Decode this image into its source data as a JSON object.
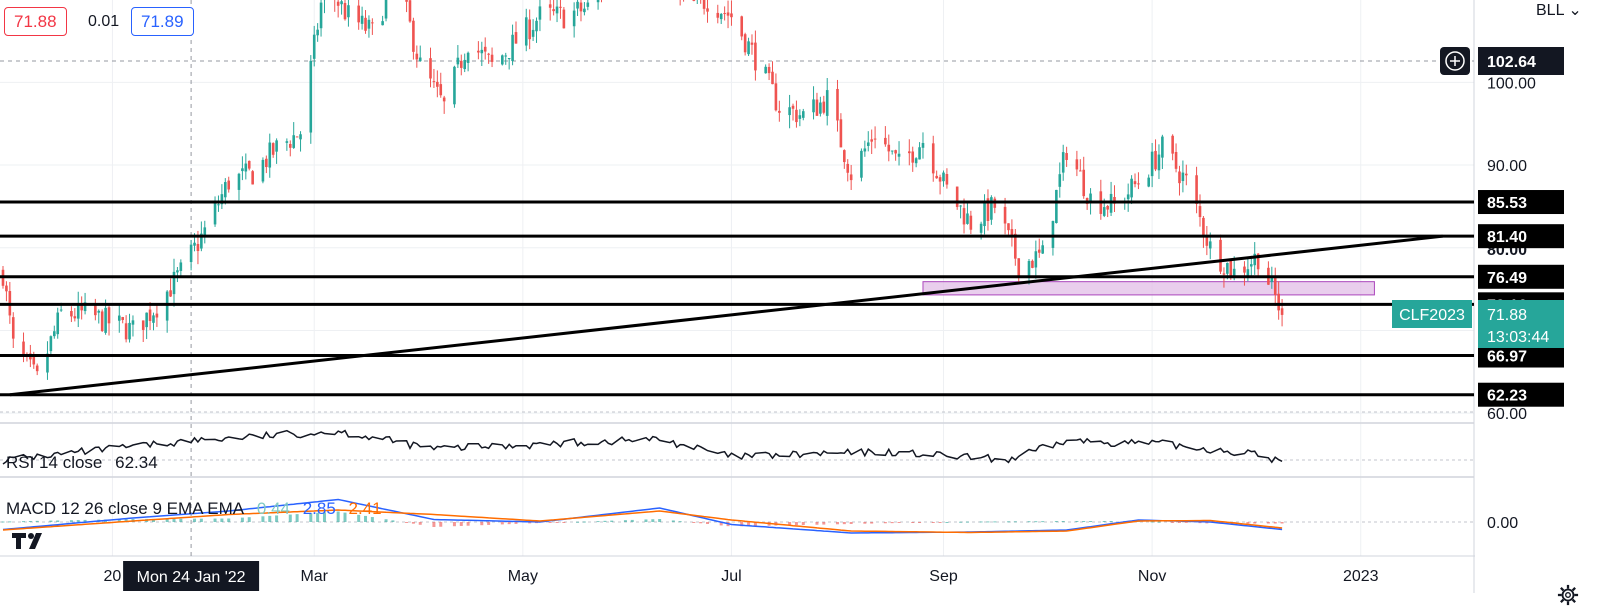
{
  "header": {
    "ask": "71.88",
    "spread": "0.01",
    "bid": "71.89",
    "unit": "BLL"
  },
  "colors": {
    "up": "#26a69a",
    "down": "#ef5350",
    "line": "#000000",
    "zone_fill": "#e1bee7",
    "zone_stroke": "#ab47bc",
    "price_badge": "#26a69a",
    "macd": "#2962ff",
    "signal": "#ff6d00"
  },
  "price_axis": {
    "ticks": [
      "60.00",
      "90.00",
      "100.00"
    ],
    "crosshair_value": "102.64"
  },
  "time_axis": {
    "labels": [
      "20",
      "Mar",
      "May",
      "Jul",
      "Sep",
      "Nov",
      "2023"
    ],
    "crosshair_label": "Mon 24 Jan '22"
  },
  "current_price": {
    "symbol": "CLF2023",
    "price": "71.88",
    "countdown": "13:03:44"
  },
  "rsi": {
    "label": "RSI 14 close",
    "value": "62.34"
  },
  "macd": {
    "label": "MACD 12 26 close 9 EMA EMA",
    "hist": "0.44",
    "macd_value": "2.85",
    "signal_value": "2.41",
    "zero_tick": "0.00"
  },
  "chart_data": {
    "type": "candlestick",
    "instrument": "CLF2023",
    "ylim": [
      58,
      112
    ],
    "horizontal_levels": [
      "85.53",
      "81.40",
      "76.49",
      "73.16",
      "66.97",
      "62.23"
    ],
    "hidden_level_label": "80.00",
    "trendline": {
      "from": [
        "2021-12-02",
        62.23
      ],
      "to": [
        "2023-01-25",
        81.4
      ]
    },
    "zone": {
      "from": "2022-08-26",
      "to": "2023-01-05",
      "low": 74.3,
      "high": 75.9
    },
    "close_path": [
      [
        "2021-11-30",
        77
      ],
      [
        "2021-12-03",
        68
      ],
      [
        "2021-12-10",
        64
      ],
      [
        "2021-12-17",
        72
      ],
      [
        "2021-12-24",
        72
      ],
      [
        "2021-12-31",
        71
      ],
      [
        "2022-01-07",
        70
      ],
      [
        "2022-01-14",
        73
      ],
      [
        "2022-01-21",
        77
      ],
      [
        "2022-01-28",
        82
      ],
      [
        "2022-02-04",
        88
      ],
      [
        "2022-02-11",
        89
      ],
      [
        "2022-02-18",
        92
      ],
      [
        "2022-02-25",
        94
      ],
      [
        "2022-03-04",
        112
      ],
      [
        "2022-03-11",
        108
      ],
      [
        "2022-03-18",
        106
      ],
      [
        "2022-03-25",
        113
      ],
      [
        "2022-04-01",
        102
      ],
      [
        "2022-04-08",
        97
      ],
      [
        "2022-04-15",
        105
      ],
      [
        "2022-04-22",
        102
      ],
      [
        "2022-04-29",
        105
      ],
      [
        "2022-05-06",
        108
      ],
      [
        "2022-05-13",
        108
      ],
      [
        "2022-05-20",
        109
      ],
      [
        "2022-05-27",
        113
      ],
      [
        "2022-06-03",
        114
      ],
      [
        "2022-06-10",
        118
      ],
      [
        "2022-06-17",
        109
      ],
      [
        "2022-06-24",
        110
      ],
      [
        "2022-07-01",
        108
      ],
      [
        "2022-07-08",
        103
      ],
      [
        "2022-07-15",
        97
      ],
      [
        "2022-07-22",
        96
      ],
      [
        "2022-07-29",
        98
      ],
      [
        "2022-08-05",
        89
      ],
      [
        "2022-08-12",
        94
      ],
      [
        "2022-08-19",
        90
      ],
      [
        "2022-08-26",
        93
      ],
      [
        "2022-09-02",
        87
      ],
      [
        "2022-09-09",
        83
      ],
      [
        "2022-09-16",
        85
      ],
      [
        "2022-09-23",
        78
      ],
      [
        "2022-09-30",
        79
      ],
      [
        "2022-10-07",
        92
      ],
      [
        "2022-10-14",
        86
      ],
      [
        "2022-10-21",
        85
      ],
      [
        "2022-10-28",
        88
      ],
      [
        "2022-11-04",
        92
      ],
      [
        "2022-11-11",
        88
      ],
      [
        "2022-11-18",
        80
      ],
      [
        "2022-11-25",
        77
      ],
      [
        "2022-12-02",
        79
      ],
      [
        "2022-12-09",
        72
      ]
    ],
    "rsi_path": [
      [
        "2021-11-30",
        40
      ],
      [
        "2022-01-24",
        52
      ],
      [
        "2022-03-08",
        58
      ],
      [
        "2022-04-05",
        47
      ],
      [
        "2022-06-10",
        53
      ],
      [
        "2022-07-01",
        42
      ],
      [
        "2022-08-15",
        45
      ],
      [
        "2022-09-20",
        40
      ],
      [
        "2022-10-07",
        52
      ],
      [
        "2022-11-04",
        50
      ],
      [
        "2022-11-30",
        44
      ],
      [
        "2022-12-09",
        39
      ]
    ],
    "macd_path": [
      [
        "2021-11-30",
        -1.5
      ],
      [
        "2022-01-07",
        0.8
      ],
      [
        "2022-02-04",
        2.2
      ],
      [
        "2022-03-08",
        4.5
      ],
      [
        "2022-04-05",
        0.5
      ],
      [
        "2022-05-06",
        0.0
      ],
      [
        "2022-06-10",
        2.8
      ],
      [
        "2022-07-01",
        -0.5
      ],
      [
        "2022-08-05",
        -2.2
      ],
      [
        "2022-09-09",
        -2.0
      ],
      [
        "2022-10-07",
        -1.6
      ],
      [
        "2022-10-28",
        0.4
      ],
      [
        "2022-11-18",
        0.0
      ],
      [
        "2022-12-09",
        -1.5
      ]
    ],
    "signal_path": [
      [
        "2021-11-30",
        -1.6
      ],
      [
        "2022-01-07",
        0.2
      ],
      [
        "2022-02-04",
        1.5
      ],
      [
        "2022-03-08",
        2.4
      ],
      [
        "2022-04-05",
        1.5
      ],
      [
        "2022-05-06",
        0.2
      ],
      [
        "2022-06-10",
        2.2
      ],
      [
        "2022-07-01",
        0.4
      ],
      [
        "2022-08-05",
        -1.8
      ],
      [
        "2022-09-09",
        -2.1
      ],
      [
        "2022-10-07",
        -1.8
      ],
      [
        "2022-10-28",
        0.2
      ],
      [
        "2022-11-18",
        0.3
      ],
      [
        "2022-12-09",
        -1.2
      ]
    ]
  }
}
